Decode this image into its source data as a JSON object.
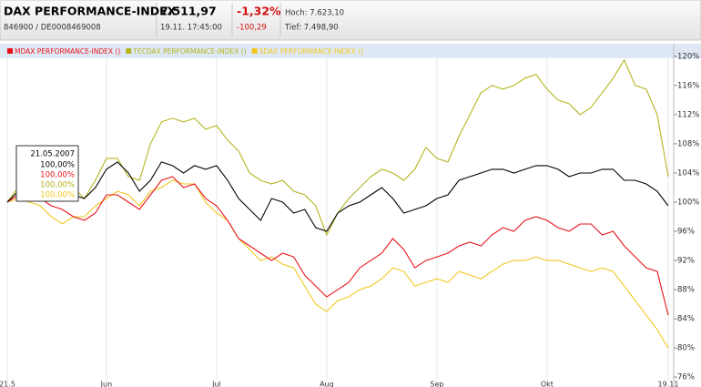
{
  "header": {
    "price": "7.511,97",
    "change_pct": "-1,32%",
    "high": "Hoch: 7.623,10",
    "id": "846900  /  DE0008469008",
    "time": "19.11. 17:45:00",
    "change": "-100,29",
    "low": "Tief: 7.498,90"
  },
  "chart_data": {
    "type": "line",
    "categories": [
      "21.5",
      null,
      null,
      null,
      null,
      null,
      null,
      null,
      null,
      "Jun",
      null,
      null,
      null,
      null,
      null,
      null,
      null,
      null,
      null,
      "Jul",
      null,
      null,
      null,
      null,
      null,
      null,
      null,
      null,
      null,
      "Aug",
      null,
      null,
      null,
      null,
      null,
      null,
      null,
      null,
      null,
      "Sep",
      null,
      null,
      null,
      null,
      null,
      null,
      null,
      null,
      null,
      "Okt",
      null,
      null,
      null,
      null,
      null,
      null,
      null,
      null,
      null,
      null,
      "19.11"
    ],
    "series": [
      {
        "name": "DAX PERFORMANCE-INDEX",
        "color": "#000000",
        "values": [
          100,
          101.5,
          103,
          103.5,
          102,
          101.5,
          101,
          100.5,
          102,
          104.5,
          105.5,
          104,
          101.5,
          103,
          105.5,
          105,
          104,
          105,
          104.5,
          105,
          103,
          100.5,
          99,
          97.5,
          100.5,
          100,
          98.5,
          99,
          96.5,
          96,
          98.5,
          99.5,
          100,
          101,
          102,
          100.5,
          98.5,
          99,
          99.5,
          100.5,
          101,
          103,
          103.5,
          104,
          104.5,
          104.5,
          104,
          104.5,
          105,
          105,
          104.5,
          103.5,
          104,
          104,
          104.5,
          104.5,
          103,
          103,
          102.5,
          101.5,
          99.5
        ]
      },
      {
        "name": "MDAX PERFORMANCE-INDEX ()",
        "color": "#e8141c",
        "values": [
          100,
          101,
          101,
          100.5,
          99.5,
          99,
          98,
          97.5,
          98.5,
          101,
          101,
          100,
          99,
          101,
          103,
          103.5,
          102,
          102.5,
          100.5,
          99.5,
          97.5,
          95,
          94,
          93,
          92,
          93,
          92.5,
          90,
          88.5,
          87,
          88,
          89,
          91,
          92,
          93,
          95,
          93.5,
          91,
          92,
          92.5,
          93,
          94,
          94.5,
          94,
          95.5,
          96.5,
          96,
          97.5,
          98,
          97.5,
          96.5,
          96,
          97,
          97,
          95.5,
          96,
          94,
          92.5,
          91,
          90.5,
          84.5
        ]
      },
      {
        "name": "TECDAX PERFORMANCE-INDEX ()",
        "color": "#b4b41e",
        "values": [
          100,
          102,
          104,
          104.5,
          102.5,
          101.5,
          102,
          100.5,
          103,
          106,
          106,
          103.5,
          103,
          108,
          111,
          111.5,
          111,
          111.5,
          110,
          110.5,
          108.5,
          107,
          104,
          103,
          102.5,
          103,
          101.5,
          101,
          99.5,
          95.5,
          98.5,
          100.5,
          102,
          103.5,
          104.5,
          104,
          103,
          104.5,
          107.5,
          106,
          105.5,
          109,
          112,
          115,
          116,
          115.5,
          116,
          117,
          117.5,
          115.5,
          114,
          113.5,
          112,
          113,
          115,
          117,
          119.5,
          116,
          115.5,
          112,
          103.5
        ]
      },
      {
        "name": "SDAX PERFORMANCE-INDEX ()",
        "color": "#f2c81e",
        "values": [
          100,
          100.5,
          100,
          99.5,
          98,
          97,
          98,
          98,
          99.5,
          100.5,
          101.5,
          101,
          99.5,
          101.5,
          102,
          103,
          102.5,
          102.5,
          100,
          98.5,
          97.5,
          95,
          93.5,
          92,
          92.5,
          91.5,
          91,
          88.5,
          86,
          85,
          86.5,
          87,
          88,
          88.5,
          89.5,
          91,
          90.5,
          88.5,
          89,
          89.5,
          89,
          90.5,
          90,
          89.5,
          90.5,
          91.5,
          92,
          92,
          92.5,
          92,
          92,
          91.5,
          91,
          90.5,
          91,
          90.5,
          88.5,
          86.5,
          84.5,
          82.5,
          80
        ]
      }
    ],
    "ylim": [
      75.4,
      121.6
    ],
    "yticks": [
      {
        "value": 76,
        "label": "76%"
      },
      {
        "value": 80,
        "label": "80%"
      },
      {
        "value": 84,
        "label": "84%"
      },
      {
        "value": 88,
        "label": "88%"
      },
      {
        "value": 92,
        "label": "92%"
      },
      {
        "value": 96,
        "label": "96%"
      },
      {
        "value": 100,
        "label": "100%"
      },
      {
        "value": 104,
        "label": "104%"
      },
      {
        "value": 108,
        "label": "108%"
      },
      {
        "value": 112,
        "label": "112%"
      },
      {
        "value": 116,
        "label": "116%"
      },
      {
        "value": 120,
        "label": "120%"
      }
    ],
    "grid": true,
    "tooltip": {
      "date": "21.05.2007",
      "labels": [
        "100,00%",
        "100,00%",
        "100,00%",
        "100,00%"
      ]
    }
  }
}
